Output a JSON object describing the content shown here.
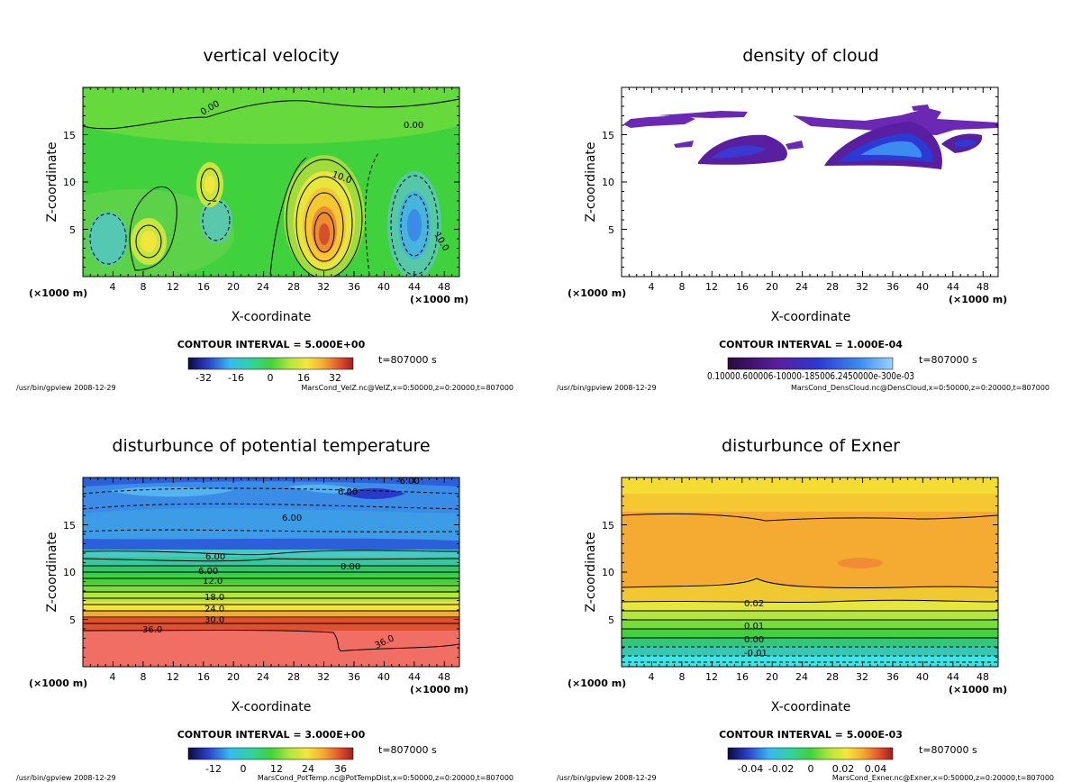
{
  "chart_data": [
    {
      "type": "heatmap",
      "title": "vertical velocity",
      "xlabel": "X-coordinate",
      "ylabel": "Z-coordinate",
      "x_unit_left": "(×1000 m)",
      "x_unit_right": "(×1000 m)",
      "xlim": [
        0,
        50
      ],
      "ylim": [
        0,
        20
      ],
      "x_ticks": [
        "4",
        "8",
        "12",
        "16",
        "20",
        "24",
        "28",
        "32",
        "36",
        "40",
        "44",
        "48"
      ],
      "y_ticks": [
        "5",
        "10",
        "15"
      ],
      "contour_interval": "CONTOUR INTERVAL = 5.000E+00",
      "colorbar_ticks": [
        "-32",
        "-16",
        "0",
        "16",
        "32"
      ],
      "time": "t=807000 s",
      "footer_left": "/usr/bin/gpview  2008-12-29",
      "footer_right": "MarsCond_VelZ.nc@VelZ,x=0:50000,z=0:20000,t=807000",
      "contour_labels": [
        "0.00",
        "0.00",
        "10.0",
        "10.0"
      ],
      "colormap": "rainbow",
      "features": [
        {
          "x": 32,
          "z": 5,
          "value": 30
        },
        {
          "x": 20,
          "z": 8.5,
          "value": 12
        },
        {
          "x": 9,
          "z": 4,
          "value": 10
        },
        {
          "x": 44,
          "z": 5.5,
          "value": -20
        },
        {
          "x": 3,
          "z": 4,
          "value": -8
        }
      ]
    },
    {
      "type": "heatmap",
      "title": "density of cloud",
      "xlabel": "X-coordinate",
      "ylabel": "Z-coordinate",
      "x_unit_left": "(×1000 m)",
      "x_unit_right": "(×1000 m)",
      "xlim": [
        0,
        50
      ],
      "ylim": [
        0,
        20
      ],
      "x_ticks": [
        "4",
        "8",
        "12",
        "16",
        "20",
        "24",
        "28",
        "32",
        "36",
        "40",
        "44",
        "48"
      ],
      "y_ticks": [
        "5",
        "10",
        "15"
      ],
      "contour_interval": "CONTOUR INTERVAL = 1.000E-04",
      "colorbar_ticks": [
        "0.10000.600006-10000-185006.2450000e-300e-03"
      ],
      "time": "t=807000 s",
      "footer_left": "/usr/bin/gpview  2008-12-29",
      "footer_right": "MarsCond_DensCloud.nc@DensCloud,x=0:50000,z=0:20000,t=807000",
      "colormap": "purple-blue",
      "cloud_regions": [
        {
          "x0": 0.5,
          "x1": 7.5,
          "z": 16.6
        },
        {
          "x0": 7,
          "x1": 14,
          "z": 17.3
        },
        {
          "x0": 23,
          "x1": 48,
          "z": 16.1
        },
        {
          "x0": 10,
          "x1": 22,
          "z": 13,
          "core": true
        },
        {
          "x0": 27,
          "x1": 42,
          "z": 13.5,
          "core": true
        },
        {
          "x0": 42,
          "x1": 47,
          "z": 14,
          "core": true
        }
      ]
    },
    {
      "type": "heatmap",
      "title": "disturbunce of potential temperature",
      "xlabel": "X-coordinate",
      "ylabel": "Z-coordinate",
      "x_unit_left": "(×1000 m)",
      "x_unit_right": "(×1000 m)",
      "xlim": [
        0,
        50
      ],
      "ylim": [
        0,
        20
      ],
      "x_ticks": [
        "4",
        "8",
        "12",
        "16",
        "20",
        "24",
        "28",
        "32",
        "36",
        "40",
        "44",
        "48"
      ],
      "y_ticks": [
        "5",
        "10",
        "15"
      ],
      "contour_interval": "CONTOUR INTERVAL = 3.000E+00",
      "colorbar_ticks": [
        "-12",
        "0",
        "12",
        "24",
        "36"
      ],
      "time": "t=807000 s",
      "footer_left": "/usr/bin/gpview  2008-12-29",
      "footer_right": "MarsCond_PotTemp.nc@PotTempDist,x=0:50000,z=0:20000,t=807000",
      "contour_labels": [
        "-6.00",
        "6.00",
        "6.00",
        "6.00",
        "6.00",
        "0.00",
        "12.0",
        "18.0",
        "24.0",
        "30.0",
        "36.0",
        "36.0"
      ],
      "colormap": "rainbow",
      "levels": [
        {
          "z": 2,
          "value": 38
        },
        {
          "z": 5,
          "value": 33
        },
        {
          "z": 6,
          "value": 27
        },
        {
          "z": 7,
          "value": 21
        },
        {
          "z": 8,
          "value": 15
        },
        {
          "z": 9.5,
          "value": 8
        },
        {
          "z": 11,
          "value": 2
        },
        {
          "z": 14,
          "value": -6
        },
        {
          "z": 18,
          "value": -10
        }
      ]
    },
    {
      "type": "heatmap",
      "title": "disturbunce of Exner",
      "xlabel": "X-coordinate",
      "ylabel": "Z-coordinate",
      "x_unit_left": "(×1000 m)",
      "x_unit_right": "(×1000 m)",
      "xlim": [
        0,
        50
      ],
      "ylim": [
        0,
        20
      ],
      "x_ticks": [
        "4",
        "8",
        "12",
        "16",
        "20",
        "24",
        "28",
        "32",
        "36",
        "40",
        "44",
        "48"
      ],
      "y_ticks": [
        "5",
        "10",
        "15"
      ],
      "contour_interval": "CONTOUR INTERVAL = 5.000E-03",
      "colorbar_ticks": [
        "-0.04",
        "-0.02",
        "0",
        "0.02",
        "0.04"
      ],
      "time": "t=807000 s",
      "footer_left": "/usr/bin/gpview  2008-12-29",
      "footer_right": "MarsCond_Exner.nc@Exner,x=0:50000,z=0:20000,t=807000",
      "contour_labels": [
        "0.02",
        "0.01",
        "0.00",
        "-0.01"
      ],
      "colormap": "rainbow",
      "levels": [
        {
          "z": 0.5,
          "value": -0.02
        },
        {
          "z": 2,
          "value": -0.01
        },
        {
          "z": 3,
          "value": 0
        },
        {
          "z": 4,
          "value": 0.01
        },
        {
          "z": 6.5,
          "value": 0.02
        },
        {
          "z": 9,
          "value": 0.03
        },
        {
          "z": 13,
          "value": 0.033
        },
        {
          "z": 16,
          "value": 0.03
        },
        {
          "z": 18.5,
          "value": 0.025
        }
      ]
    }
  ]
}
